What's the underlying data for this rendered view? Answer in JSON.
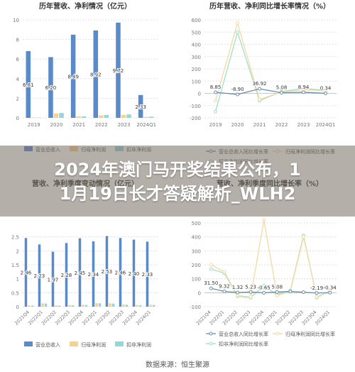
{
  "headline_lines": [
    "2024年澳门马开奖结果公布，1",
    "1月19日长才答疑解析_WLH2"
  ],
  "source": "数据来源：恒生聚源",
  "colors": {
    "revenue": "#5b8ac9",
    "net_profit": "#f7d28e",
    "deducted_profit": "#93d7d8",
    "rev_growth": "#6d8fad",
    "np_growth": "#f5d9a2",
    "dp_growth": "#9fe0c7",
    "grid": "#d9d9d9",
    "axis_text": "#777777",
    "title": "#333333"
  },
  "chart_data": [
    {
      "id": "annual-value",
      "type": "bar",
      "title": "历年营收、净利情况（亿元）",
      "categories": [
        "2019",
        "2020",
        "2021",
        "2022",
        "2023",
        "2024Q1"
      ],
      "ylim": [
        0,
        10
      ],
      "yticks": [
        "0",
        "2",
        "4",
        "6",
        "8",
        "10"
      ],
      "series": [
        {
          "name": "营业总收入",
          "values": [
            6.81,
            6.2,
            8.49,
            8.92,
            9.72,
            2.33
          ],
          "labels": [
            "6.81",
            "6.20",
            "8.49",
            "8.92",
            "9.72",
            "2.33"
          ]
        },
        {
          "name": "归母净利润",
          "values": [
            0.05,
            0.45,
            0.15,
            0.25,
            0.3,
            0.1
          ]
        },
        {
          "name": "扣非净利润",
          "values": [
            0.03,
            0.5,
            0.15,
            0.3,
            0.35,
            0.12
          ]
        }
      ],
      "legend": "bottom",
      "grid": true
    },
    {
      "id": "annual-growth",
      "type": "line",
      "title": "历年营收、净利同比增长率情况（%）",
      "categories": [
        "2019",
        "2020",
        "2021",
        "2022",
        "2023",
        "2024Q1"
      ],
      "ylim": [
        -200,
        600
      ],
      "yticks": [
        "-200",
        "-100",
        "0",
        "100",
        "200",
        "300",
        "400",
        "500",
        "600"
      ],
      "series": [
        {
          "name": "营业总收入同比增长率",
          "values": [
            8.85,
            -8.9,
            36.92,
            5.08,
            8.94,
            0.34
          ],
          "labels": [
            "8.85",
            "-8.90",
            "36.92",
            "5.08",
            "8.94",
            "0.34"
          ]
        },
        {
          "name": "归母净利润同比增长率",
          "values": [
            -60,
            575,
            -50,
            10,
            30,
            20
          ]
        },
        {
          "name": "扣非净利润同比增长率",
          "values": [
            -150,
            500,
            -60,
            15,
            40,
            25
          ]
        }
      ],
      "legend": "bottom",
      "grid": true
    },
    {
      "id": "quarterly-value",
      "type": "bar",
      "title": "营收、净利季度变动情况（亿元）",
      "categories": [
        "2021Q4",
        "2022Q1",
        "2022Q2",
        "2022Q3",
        "2022Q4",
        "2023Q1",
        "2023Q2",
        "2023Q3",
        "2023Q4",
        "2024Q1"
      ],
      "ylim": [
        0,
        3
      ],
      "yticks": [
        "0",
        "0.5",
        "1",
        "1.5",
        "2",
        "2.5"
      ],
      "series": [
        {
          "name": "营业总收入",
          "values": [
            2.46,
            2.23,
            1.97,
            2.28,
            2.45,
            2.34,
            2.53,
            2.46,
            2.4,
            2.33
          ],
          "labels": [
            "2.46",
            "2.23",
            "1.97",
            "2.28",
            "2.45",
            "2.34",
            "2.53",
            "2.46",
            "2.40",
            "2.33"
          ]
        },
        {
          "name": "归母净利润",
          "values": [
            0.05,
            0.12,
            0.05,
            0.06,
            0.07,
            0.13,
            0.12,
            0.08,
            0.06,
            0.07
          ]
        },
        {
          "name": "扣非净利润",
          "values": [
            0.04,
            0.11,
            0.04,
            0.05,
            0.06,
            0.12,
            0.11,
            0.07,
            0.05,
            0.06
          ]
        }
      ],
      "legend": "bottom",
      "grid": true
    },
    {
      "id": "quarterly-growth",
      "type": "line",
      "title": "营收、净利季度同比增长率（%）",
      "categories": [
        "2021Q4",
        "2022Q1",
        "2022Q2",
        "2022Q3",
        "2022Q4",
        "2023Q1",
        "2023Q2",
        "2023Q3",
        "2023Q4",
        "2024Q1"
      ],
      "ylim": [
        -100,
        500
      ],
      "yticks": [
        "-100",
        "0",
        "100",
        "200",
        "300",
        "400",
        "500"
      ],
      "series": [
        {
          "name": "营业总收入同比增长率",
          "values": [
            31.5,
            9.32,
            1.32,
            5.23,
            -0.65,
            5.08,
            8.94,
            3.4,
            -2.19,
            -0.34
          ],
          "labels": [
            "31.50",
            "9.32",
            "1.32",
            "5.23",
            "-0.65",
            "5.08",
            "",
            "",
            "-2.19",
            "-0.34"
          ]
        },
        {
          "name": "归母净利润同比增长率",
          "values": [
            200,
            150,
            -20,
            -30,
            520,
            -20,
            10,
            400,
            -30,
            10
          ]
        },
        {
          "name": "扣非净利润同比增长率",
          "values": [
            170,
            140,
            -25,
            -35,
            50,
            -15,
            15,
            410,
            -35,
            12
          ]
        }
      ],
      "legend": "bottom",
      "grid": true
    }
  ]
}
